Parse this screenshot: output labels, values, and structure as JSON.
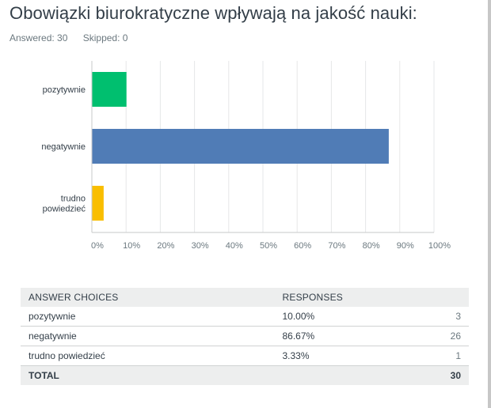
{
  "title": "Obowiązki biurokratyczne wpływają na jakość nauki:",
  "answered": "Answered: 30",
  "skipped": "Skipped: 0",
  "chart_data": {
    "type": "bar",
    "orientation": "horizontal",
    "categories": [
      "pozytywnie",
      "negatywnie",
      "trudno powiedzieć"
    ],
    "category_lines": [
      [
        "pozytywnie"
      ],
      [
        "negatywnie"
      ],
      [
        "trudno",
        "powiedzieć"
      ]
    ],
    "values": [
      10.0,
      86.67,
      3.33
    ],
    "colors": [
      "#00bf6f",
      "#507cb6",
      "#f9be00"
    ],
    "xlim": [
      0,
      100
    ],
    "xticks": [
      "0%",
      "10%",
      "20%",
      "30%",
      "40%",
      "50%",
      "60%",
      "70%",
      "80%",
      "90%",
      "100%"
    ],
    "grid": true
  },
  "table": {
    "headers": [
      "ANSWER CHOICES",
      "RESPONSES",
      ""
    ],
    "rows": [
      {
        "choice": "pozytywnie",
        "percent": "10.00%",
        "count": "3"
      },
      {
        "choice": "negatywnie",
        "percent": "86.67%",
        "count": "26"
      },
      {
        "choice": "trudno powiedzieć",
        "percent": "3.33%",
        "count": "1"
      }
    ],
    "total_label": "TOTAL",
    "total_value": "30"
  }
}
